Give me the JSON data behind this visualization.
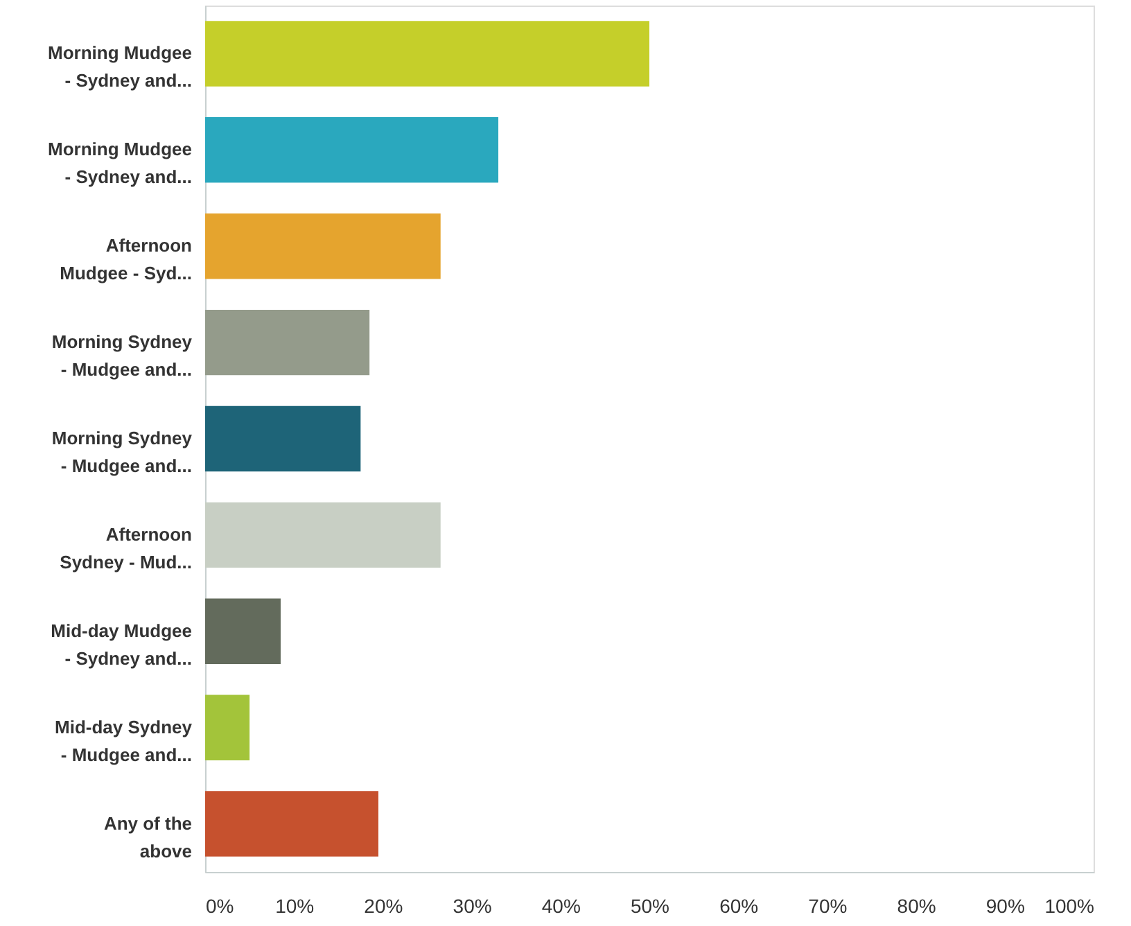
{
  "chart_data": {
    "type": "bar",
    "orientation": "horizontal",
    "grid": false,
    "categories": [
      "Morning Mudgee\n- Sydney and...",
      "Morning Mudgee\n- Sydney and...",
      "Afternoon\nMudgee - Syd...",
      "Morning Sydney\n- Mudgee and...",
      "Morning Sydney\n- Mudgee and...",
      "Afternoon\nSydney - Mud...",
      "Mid-day Mudgee\n- Sydney and...",
      "Mid-day Sydney\n- Mudgee and...",
      "Any of the\nabove"
    ],
    "values": [
      50,
      33,
      26.5,
      18.5,
      17.5,
      26.5,
      8.5,
      5,
      19.5
    ],
    "colors": [
      "#c5cf2a",
      "#2aa8be",
      "#e5a42e",
      "#949b8b",
      "#1e6478",
      "#c8cfc4",
      "#636b5c",
      "#a3c43a",
      "#c6512e"
    ],
    "xlim": [
      0,
      100
    ],
    "xticks": [
      {
        "value": 0,
        "label": "0%"
      },
      {
        "value": 10,
        "label": "10%"
      },
      {
        "value": 20,
        "label": "20%"
      },
      {
        "value": 30,
        "label": "30%"
      },
      {
        "value": 40,
        "label": "40%"
      },
      {
        "value": 50,
        "label": "50%"
      },
      {
        "value": 60,
        "label": "60%"
      },
      {
        "value": 70,
        "label": "70%"
      },
      {
        "value": 80,
        "label": "80%"
      },
      {
        "value": 90,
        "label": "90%"
      },
      {
        "value": 100,
        "label": "100%"
      }
    ]
  }
}
